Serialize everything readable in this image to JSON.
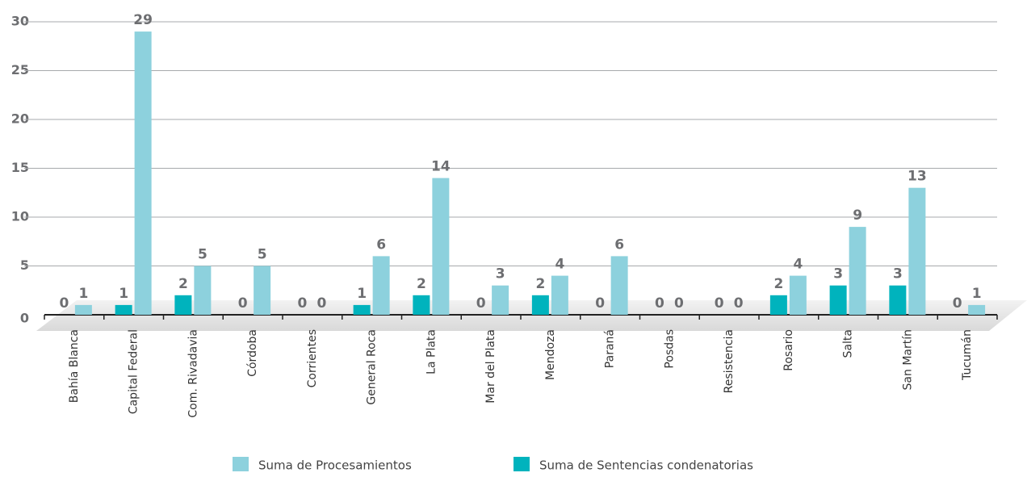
{
  "chart_data": {
    "type": "bar",
    "categories": [
      "Bahía Blanca",
      "Capital Federal",
      "Com. Rivadavia",
      "Córdoba",
      "Corrientes",
      "General Roca",
      "La Plata",
      "Mar del Plata",
      "Mendoza",
      "Paraná",
      "Posdas",
      "Resistencia",
      "Rosario",
      "Salta",
      "San Martín",
      "Tucumán"
    ],
    "series": [
      {
        "name": "Suma de Procesamientos",
        "color": "#8dd1dd",
        "values": [
          1,
          29,
          5,
          5,
          0,
          6,
          14,
          3,
          4,
          6,
          0,
          0,
          4,
          9,
          13,
          1
        ]
      },
      {
        "name": "Suma de Sentencias condenatorias",
        "color": "#00b3bd",
        "values": [
          0,
          1,
          2,
          0,
          0,
          1,
          2,
          0,
          2,
          0,
          0,
          0,
          2,
          3,
          3,
          0
        ]
      }
    ],
    "ylim": [
      0,
      30
    ],
    "yticks": [
      0,
      5,
      10,
      15,
      20,
      25,
      30
    ],
    "grid": true
  }
}
